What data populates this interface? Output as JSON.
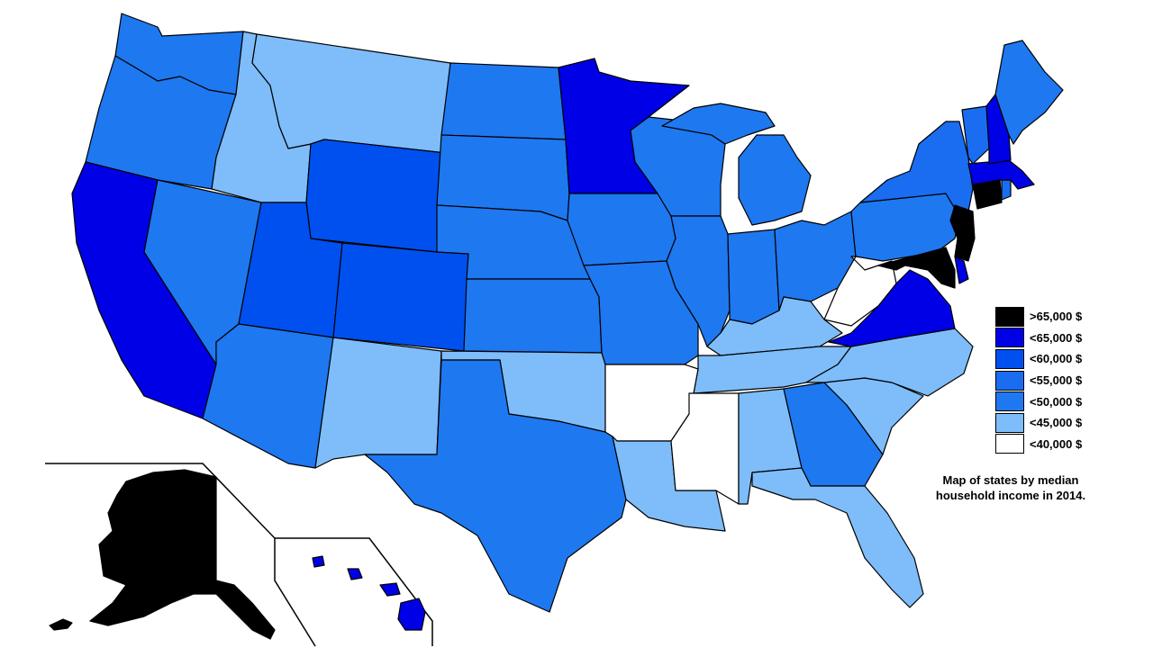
{
  "legend": {
    "items": [
      {
        "label": ">65,000 $",
        "color": "#000000"
      },
      {
        "label": "<65,000 $",
        "color": "#0000e6"
      },
      {
        "label": "<60,000 $",
        "color": "#0050f0"
      },
      {
        "label": "<55,000 $",
        "color": "#1a6df0"
      },
      {
        "label": "<50,000 $",
        "color": "#1e78f0"
      },
      {
        "label": "<45,000 $",
        "color": "#7ebdfa"
      },
      {
        "label": "<40,000 $",
        "color": "#ffffff"
      }
    ]
  },
  "caption": {
    "line1": "Map of states by median",
    "line2": "household income in 2014."
  }
}
